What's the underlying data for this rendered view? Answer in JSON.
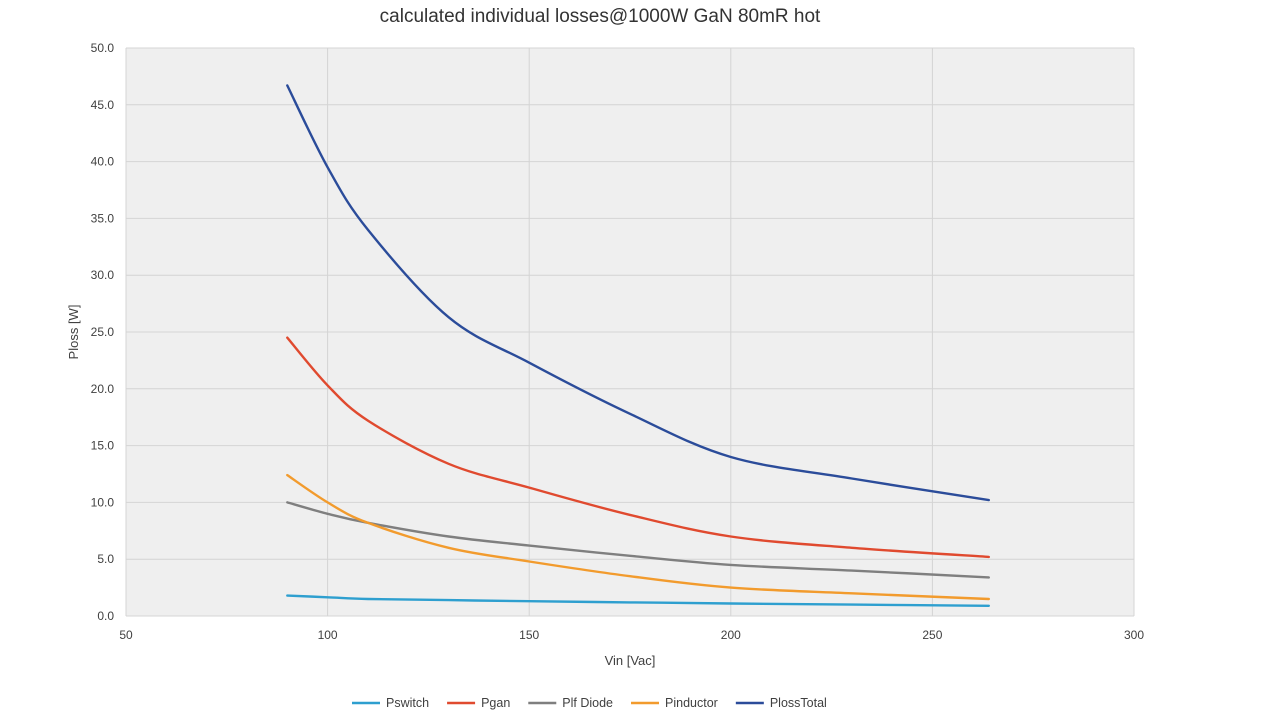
{
  "chart_data": {
    "type": "line",
    "title": "calculated individual losses@1000W  GaN 80mR hot",
    "xlabel": "Vin [Vac]",
    "ylabel": "Ploss [W]",
    "xlim": [
      50,
      300
    ],
    "ylim": [
      0,
      50
    ],
    "x_ticks": [
      50,
      100,
      150,
      200,
      250,
      300
    ],
    "y_ticks": [
      0,
      5,
      10,
      15,
      20,
      25,
      30,
      35,
      40,
      45,
      50
    ],
    "x_tick_labels": [
      "50",
      "100",
      "150",
      "200",
      "250",
      "300"
    ],
    "y_tick_labels": [
      "0.0",
      "5.0",
      "10.0",
      "15.0",
      "20.0",
      "25.0",
      "30.0",
      "35.0",
      "40.0",
      "45.0",
      "50.0"
    ],
    "grid": true,
    "legend_position": "bottom",
    "x": [
      90,
      100,
      110,
      130,
      150,
      175,
      200,
      230,
      264
    ],
    "series": [
      {
        "name": "Pswitch",
        "color": "#2e9fcf",
        "values": [
          1.8,
          1.65,
          1.5,
          1.4,
          1.3,
          1.2,
          1.1,
          1.0,
          0.9
        ]
      },
      {
        "name": "Pgan",
        "color": "#e04a2f",
        "values": [
          24.5,
          20.3,
          17.2,
          13.4,
          11.3,
          8.9,
          7.0,
          6.0,
          5.2
        ]
      },
      {
        "name": "Plf Diode",
        "color": "#7f7f7f",
        "values": [
          10.0,
          9.0,
          8.2,
          7.0,
          6.2,
          5.3,
          4.5,
          4.0,
          3.4
        ]
      },
      {
        "name": "Pinductor",
        "color": "#f29b2d",
        "values": [
          12.4,
          10.0,
          8.2,
          6.0,
          4.8,
          3.5,
          2.5,
          2.0,
          1.5
        ]
      },
      {
        "name": "PlossTotal",
        "color": "#2b4c9a",
        "values": [
          46.7,
          39.5,
          34.0,
          26.3,
          22.3,
          17.8,
          14.0,
          12.1,
          10.2
        ]
      }
    ]
  }
}
